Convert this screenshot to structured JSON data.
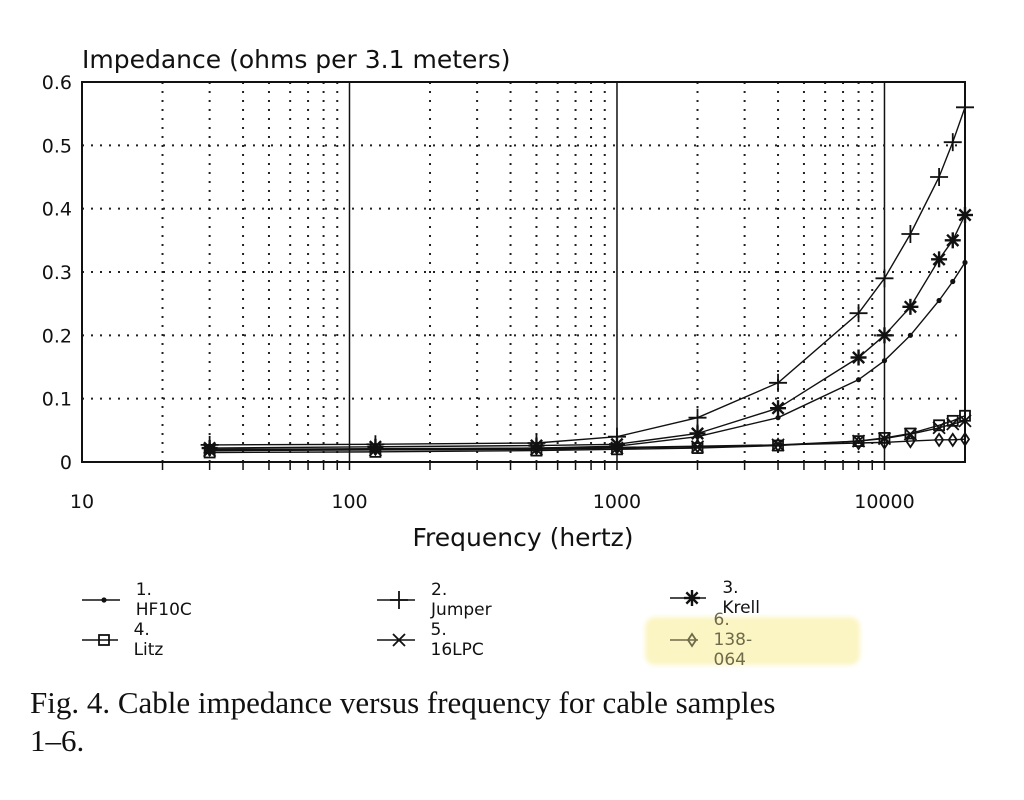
{
  "chart_data": {
    "type": "line",
    "title": "Impedance (ohms per 3.1 meters)",
    "xlabel": "Frequency (hertz)",
    "ylabel": "",
    "x_scale": "log",
    "xlim": [
      10,
      20000
    ],
    "ylim": [
      0,
      0.6
    ],
    "x_ticks": [
      "10",
      "100",
      "1000",
      "10000"
    ],
    "y_ticks": [
      "0",
      "0.1",
      "0.2",
      "0.3",
      "0.4",
      "0.5",
      "0.6"
    ],
    "grid": true,
    "legend_position": "bottom",
    "x": [
      30,
      125,
      500,
      1000,
      2000,
      4000,
      8000,
      10000,
      12500,
      16000,
      18000,
      20000
    ],
    "series": [
      {
        "name": "1. HF10C",
        "marker": "dot",
        "values": [
          0.018,
          0.02,
          0.022,
          0.025,
          0.04,
          0.07,
          0.13,
          0.16,
          0.2,
          0.255,
          0.285,
          0.315
        ]
      },
      {
        "name": "2. Jumper",
        "marker": "plus",
        "values": [
          0.027,
          0.028,
          0.03,
          0.04,
          0.07,
          0.125,
          0.235,
          0.29,
          0.36,
          0.45,
          0.505,
          0.56
        ]
      },
      {
        "name": "3. Krell",
        "marker": "asterisk",
        "values": [
          0.022,
          0.024,
          0.026,
          0.028,
          0.045,
          0.085,
          0.165,
          0.2,
          0.245,
          0.32,
          0.35,
          0.39
        ]
      },
      {
        "name": "4. Litz",
        "marker": "square",
        "values": [
          0.015,
          0.016,
          0.018,
          0.02,
          0.022,
          0.026,
          0.033,
          0.038,
          0.045,
          0.058,
          0.065,
          0.073
        ]
      },
      {
        "name": "5. 16LPC",
        "marker": "cross",
        "values": [
          0.018,
          0.019,
          0.02,
          0.022,
          0.024,
          0.027,
          0.033,
          0.037,
          0.044,
          0.054,
          0.06,
          0.065
        ]
      },
      {
        "name": "6. 138-064",
        "marker": "diamond",
        "values": [
          0.02,
          0.021,
          0.022,
          0.023,
          0.025,
          0.027,
          0.03,
          0.031,
          0.033,
          0.035,
          0.035,
          0.036
        ]
      }
    ],
    "highlighted_series": "6. 138-064",
    "highlight_color": "#fbf5c4",
    "highlight_text_color": "#6f6a4a"
  },
  "caption": {
    "line1": "Fig. 4. Cable impedance versus frequency for cable samples",
    "line2": "1–6."
  }
}
